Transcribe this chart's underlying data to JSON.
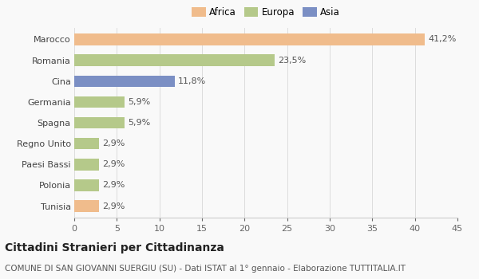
{
  "categories": [
    "Marocco",
    "Romania",
    "Cina",
    "Germania",
    "Spagna",
    "Regno Unito",
    "Paesi Bassi",
    "Polonia",
    "Tunisia"
  ],
  "values": [
    41.2,
    23.5,
    11.8,
    5.9,
    5.9,
    2.9,
    2.9,
    2.9,
    2.9
  ],
  "labels": [
    "41,2%",
    "23,5%",
    "11,8%",
    "5,9%",
    "5,9%",
    "2,9%",
    "2,9%",
    "2,9%",
    "2,9%"
  ],
  "colors": [
    "#f0bc8c",
    "#b5c98a",
    "#7b8fc4",
    "#b5c98a",
    "#b5c98a",
    "#b5c98a",
    "#b5c98a",
    "#b5c98a",
    "#f0bc8c"
  ],
  "legend": [
    {
      "label": "Africa",
      "color": "#f0bc8c"
    },
    {
      "label": "Europa",
      "color": "#b5c98a"
    },
    {
      "label": "Asia",
      "color": "#7b8fc4"
    }
  ],
  "xlim": [
    0,
    45
  ],
  "xticks": [
    0,
    5,
    10,
    15,
    20,
    25,
    30,
    35,
    40,
    45
  ],
  "title": "Cittadini Stranieri per Cittadinanza",
  "subtitle": "COMUNE DI SAN GIOVANNI SUERGIU (SU) - Dati ISTAT al 1° gennaio - Elaborazione TUTTITALIA.IT",
  "background_color": "#f9f9f9",
  "bar_height": 0.55,
  "label_fontsize": 8,
  "tick_fontsize": 8,
  "title_fontsize": 10,
  "subtitle_fontsize": 7.5,
  "legend_fontsize": 8.5
}
